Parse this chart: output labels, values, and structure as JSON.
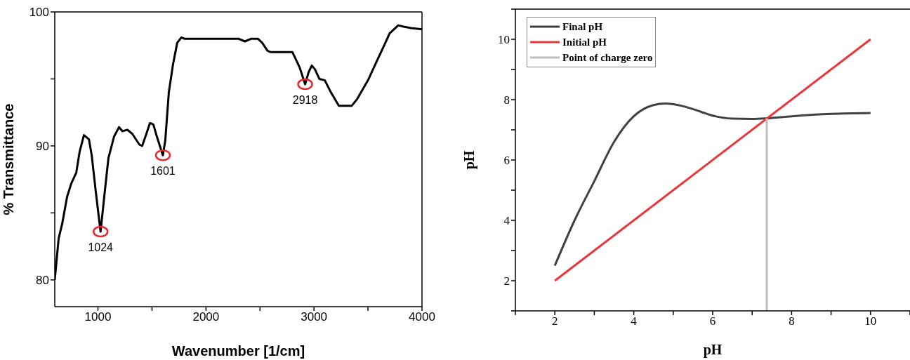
{
  "chart_data": [
    {
      "type": "line",
      "xlabel": "Wavenumber [1/cm]",
      "ylabel": "% Transmittance",
      "xlim": [
        600,
        4000
      ],
      "xticks": [
        1000,
        {
          "value": 1500,
          "label": null
        },
        2000,
        {
          "value": 2500,
          "label": null
        },
        3000,
        {
          "value": 3500,
          "label": null
        },
        4000
      ],
      "ylim": [
        78,
        100
      ],
      "yticks": [
        80,
        {
          "value": 85,
          "label": null
        },
        90,
        {
          "value": 95,
          "label": null
        },
        100
      ],
      "series": [
        {
          "color": "#000000",
          "x": [
            600,
            636,
            669,
            714,
            753,
            799,
            831,
            870,
            916,
            942,
            981,
            1024,
            1058,
            1097,
            1149,
            1195,
            1227,
            1273,
            1318,
            1383,
            1409,
            1448,
            1481,
            1513,
            1545,
            1601,
            1623,
            1656,
            1695,
            1734,
            1773,
            1800,
            2000,
            2300,
            2360,
            2420,
            2480,
            2520,
            2570,
            2600,
            2800,
            2830,
            2870,
            2918,
            2950,
            2980,
            3010,
            3050,
            3100,
            3150,
            3230,
            3350,
            3400,
            3500,
            3580,
            3650,
            3700,
            3780,
            3830,
            3900,
            4000
          ],
          "values": [
            80,
            83.1,
            84.2,
            86.2,
            87.2,
            88.0,
            89.6,
            90.8,
            90.5,
            89.3,
            86.5,
            83.6,
            86.2,
            89.1,
            90.7,
            91.4,
            91.1,
            91.2,
            90.9,
            90.1,
            90.0,
            90.9,
            91.7,
            91.6,
            90.7,
            89.3,
            90.4,
            94.0,
            96.1,
            97.7,
            98.1,
            98.0,
            98.0,
            98.0,
            97.8,
            98.0,
            98.0,
            97.7,
            97.1,
            97.0,
            97.0,
            96.5,
            95.8,
            94.6,
            95.5,
            96.0,
            95.7,
            95.0,
            94.9,
            94.1,
            93.0,
            93.0,
            93.5,
            94.9,
            96.3,
            97.5,
            98.4,
            99.0,
            98.9,
            98.8,
            98.7
          ]
        }
      ],
      "annotations": [
        {
          "text": "1024",
          "x": 1024,
          "y": 83.6
        },
        {
          "text": "1601",
          "x": 1601,
          "y": 89.3
        },
        {
          "text": "2918",
          "x": 2918,
          "y": 94.6
        }
      ]
    },
    {
      "type": "line",
      "xlabel": "pH",
      "ylabel": "pH",
      "legend": "top left",
      "xlim": [
        1,
        11
      ],
      "xticks": [
        {
          "value": 1,
          "label": null
        },
        2,
        {
          "value": 3,
          "label": null
        },
        4,
        {
          "value": 5,
          "label": null
        },
        6,
        {
          "value": 7,
          "label": null
        },
        8,
        {
          "value": 9,
          "label": null
        },
        10,
        {
          "value": 11,
          "label": null
        }
      ],
      "ylim": [
        1,
        11
      ],
      "yticks": [
        {
          "value": 1,
          "label": null
        },
        2,
        {
          "value": 3,
          "label": null
        },
        4,
        {
          "value": 5,
          "label": null
        },
        6,
        {
          "value": 7,
          "label": null
        },
        8,
        {
          "value": 9,
          "label": null
        },
        10,
        {
          "value": 11,
          "label": null
        }
      ],
      "series": [
        {
          "name": "Final pH",
          "color": "#404040",
          "x": [
            2,
            2.5,
            3,
            3.5,
            4,
            4.5,
            4.8,
            5.2,
            5.7,
            6,
            6.5,
            7,
            7.37,
            8,
            9,
            10
          ],
          "values": [
            2.5,
            4.0,
            5.3,
            6.6,
            7.45,
            7.82,
            7.87,
            7.8,
            7.6,
            7.47,
            7.37,
            7.36,
            7.38,
            7.45,
            7.53,
            7.56
          ]
        },
        {
          "name": "Initial pH",
          "color": "#e8373a",
          "x": [
            2,
            10
          ],
          "values": [
            2,
            10
          ]
        },
        {
          "name": "Point of charge zero",
          "color": "#c0c0c0",
          "x": [
            7.37,
            7.37
          ],
          "values": [
            1,
            7.38
          ]
        }
      ]
    }
  ]
}
